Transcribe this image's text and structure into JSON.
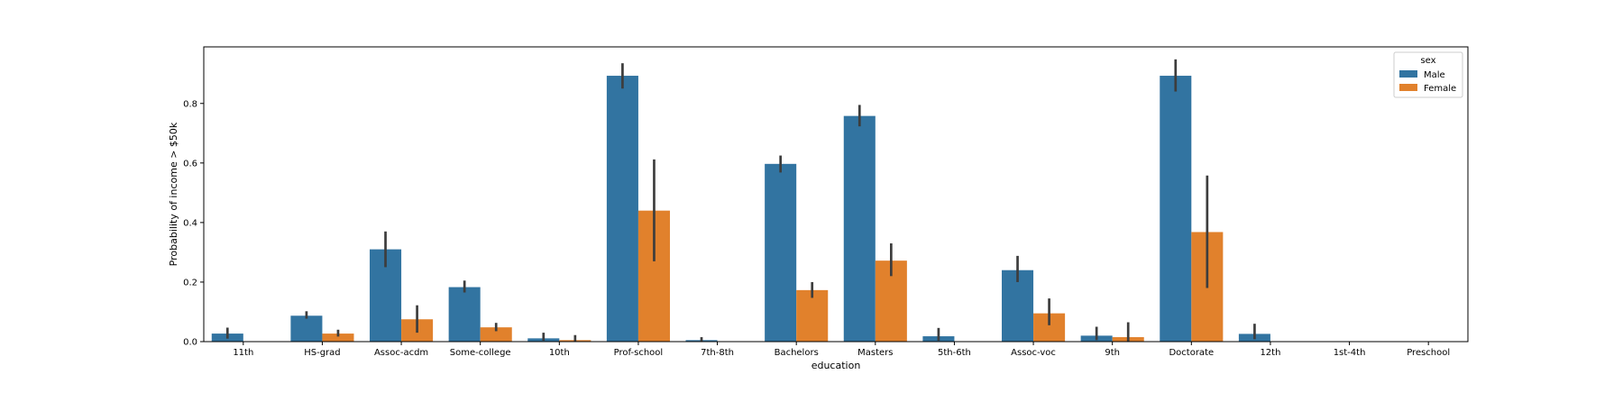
{
  "chart_data": {
    "type": "bar",
    "xlabel": "education",
    "ylabel": "Probability of income > $50k",
    "ylim": [
      0,
      0.99
    ],
    "yticks": [
      0.0,
      0.2,
      0.4,
      0.6,
      0.8
    ],
    "ytick_labels": [
      "0.0",
      "0.2",
      "0.4",
      "0.6",
      "0.8"
    ],
    "grid": false,
    "legend": {
      "title": "sex",
      "placement": "top-right"
    },
    "categories": [
      "11th",
      "HS-grad",
      "Assoc-acdm",
      "Some-college",
      "10th",
      "Prof-school",
      "7th-8th",
      "Bachelors",
      "Masters",
      "5th-6th",
      "Assoc-voc",
      "9th",
      "Doctorate",
      "12th",
      "1st-4th",
      "Preschool"
    ],
    "series": [
      {
        "name": "Male",
        "color": "#3274a1",
        "values": [
          0.027,
          0.087,
          0.31,
          0.183,
          0.011,
          0.893,
          0.005,
          0.597,
          0.758,
          0.018,
          0.24,
          0.02,
          0.893,
          0.026,
          0.0,
          0.0
        ],
        "err_low": [
          0.01,
          0.077,
          0.25,
          0.165,
          0.003,
          0.85,
          0.0,
          0.568,
          0.723,
          0.003,
          0.2,
          0.005,
          0.84,
          0.008,
          0.0,
          0.0
        ],
        "err_high": [
          0.047,
          0.102,
          0.37,
          0.205,
          0.03,
          0.935,
          0.015,
          0.625,
          0.795,
          0.046,
          0.288,
          0.05,
          0.948,
          0.06,
          0.0,
          0.0
        ]
      },
      {
        "name": "Female",
        "color": "#e1812c",
        "values": [
          0.0,
          0.027,
          0.075,
          0.048,
          0.005,
          0.44,
          0.0,
          0.173,
          0.272,
          0.0,
          0.095,
          0.015,
          0.368,
          0.0,
          0.0,
          0.0
        ],
        "err_low": [
          0.0,
          0.017,
          0.03,
          0.035,
          0.0,
          0.27,
          0.0,
          0.147,
          0.22,
          0.0,
          0.055,
          0.0,
          0.18,
          0.0,
          0.0,
          0.0
        ],
        "err_high": [
          0.0,
          0.04,
          0.122,
          0.063,
          0.022,
          0.612,
          0.0,
          0.2,
          0.33,
          0.0,
          0.145,
          0.065,
          0.558,
          0.0,
          0.0,
          0.0
        ]
      }
    ]
  }
}
